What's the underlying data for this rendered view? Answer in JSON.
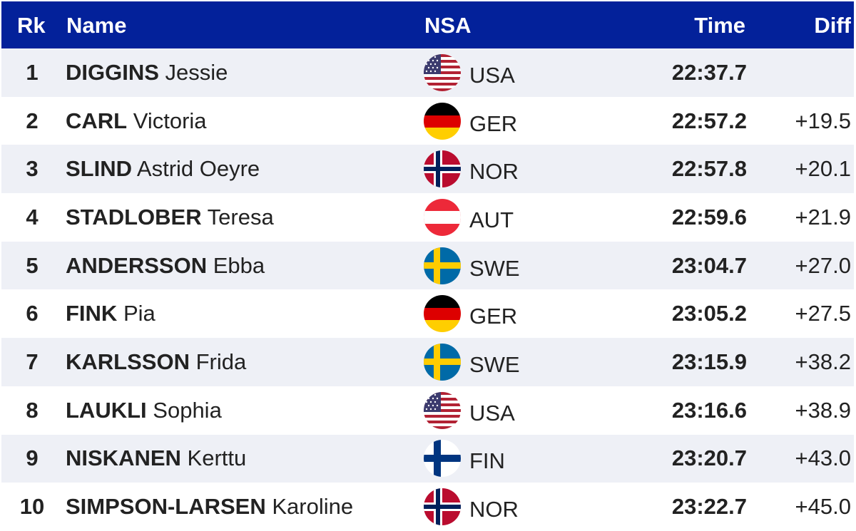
{
  "header": {
    "rk": "Rk",
    "name": "Name",
    "nsa": "NSA",
    "time": "Time",
    "diff": "Diff"
  },
  "rows": [
    {
      "rk": "1",
      "last": "DIGGINS",
      "first": "Jessie",
      "nsa": "USA",
      "flag": "usa-flag-icon",
      "time": "22:37.7",
      "diff": ""
    },
    {
      "rk": "2",
      "last": "CARL",
      "first": "Victoria",
      "nsa": "GER",
      "flag": "ger-flag-icon",
      "time": "22:57.2",
      "diff": "+19.5"
    },
    {
      "rk": "3",
      "last": "SLIND",
      "first": "Astrid Oeyre",
      "nsa": "NOR",
      "flag": "nor-flag-icon",
      "time": "22:57.8",
      "diff": "+20.1"
    },
    {
      "rk": "4",
      "last": "STADLOBER",
      "first": "Teresa",
      "nsa": "AUT",
      "flag": "aut-flag-icon",
      "time": "22:59.6",
      "diff": "+21.9"
    },
    {
      "rk": "5",
      "last": "ANDERSSON",
      "first": "Ebba",
      "nsa": "SWE",
      "flag": "swe-flag-icon",
      "time": "23:04.7",
      "diff": "+27.0"
    },
    {
      "rk": "6",
      "last": "FINK",
      "first": "Pia",
      "nsa": "GER",
      "flag": "ger-flag-icon",
      "time": "23:05.2",
      "diff": "+27.5"
    },
    {
      "rk": "7",
      "last": "KARLSSON",
      "first": "Frida",
      "nsa": "SWE",
      "flag": "swe-flag-icon",
      "time": "23:15.9",
      "diff": "+38.2"
    },
    {
      "rk": "8",
      "last": "LAUKLI",
      "first": "Sophia",
      "nsa": "USA",
      "flag": "usa-flag-icon",
      "time": "23:16.6",
      "diff": "+38.9"
    },
    {
      "rk": "9",
      "last": "NISKANEN",
      "first": "Kerttu",
      "nsa": "FIN",
      "flag": "fin-flag-icon",
      "time": "23:20.7",
      "diff": "+43.0"
    },
    {
      "rk": "10",
      "last": "SIMPSON-LARSEN",
      "first": "Karoline",
      "nsa": "NOR",
      "flag": "nor-flag-icon",
      "time": "23:22.7",
      "diff": "+45.0"
    }
  ],
  "colors": {
    "header_bg": "#03219a",
    "row_alt": "#eef0f6"
  }
}
